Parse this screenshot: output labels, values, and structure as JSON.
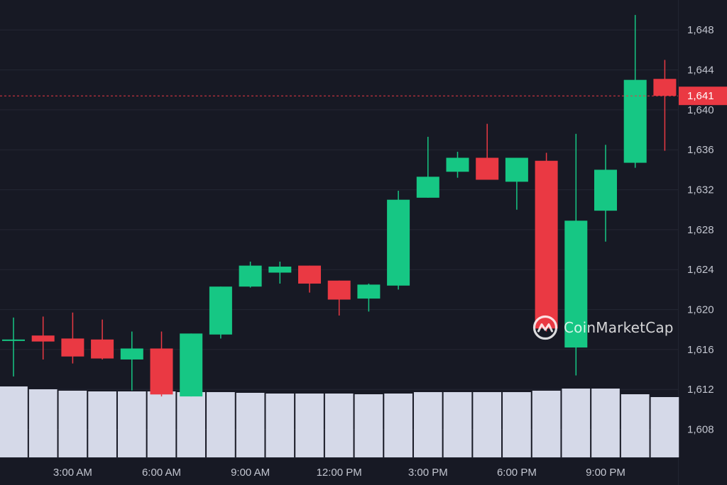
{
  "chart_data": {
    "type": "candlestick",
    "source_watermark": "CoinMarketCap",
    "x_tick_labels": [
      "3:00 AM",
      "6:00 AM",
      "9:00 AM",
      "12:00 PM",
      "3:00 PM",
      "6:00 PM",
      "9:00 PM"
    ],
    "y_tick_values": [
      1608,
      1612,
      1616,
      1620,
      1624,
      1628,
      1632,
      1636,
      1640,
      1644,
      1648
    ],
    "y_tick_labels": [
      "1,608",
      "1,612",
      "1,616",
      "1,620",
      "1,624",
      "1,628",
      "1,632",
      "1,636",
      "1,640",
      "1,644",
      "1,648"
    ],
    "ylim": [
      1605.2,
      1651
    ],
    "current_price": 1641.4,
    "current_price_label": "1,641",
    "grid": true,
    "colors": {
      "background": "#171924",
      "up": "#16c784",
      "down": "#ea3943",
      "volume": "#d5d9e8",
      "axis_text": "#c3c6d0",
      "grid": "#252733"
    },
    "candles": [
      {
        "open": 1617.0,
        "high": 1619.2,
        "low": 1613.3,
        "close": 1617.0,
        "volume": 1.0
      },
      {
        "open": 1617.4,
        "high": 1619.3,
        "low": 1615.0,
        "close": 1616.8,
        "volume": 0.96
      },
      {
        "open": 1617.1,
        "high": 1619.7,
        "low": 1614.6,
        "close": 1615.3,
        "volume": 0.94
      },
      {
        "open": 1617.0,
        "high": 1619.0,
        "low": 1615.0,
        "close": 1615.1,
        "volume": 0.93
      },
      {
        "open": 1615.0,
        "high": 1617.8,
        "low": 1611.9,
        "close": 1616.1,
        "volume": 0.93
      },
      {
        "open": 1616.1,
        "high": 1617.8,
        "low": 1611.3,
        "close": 1611.5,
        "volume": 0.93
      },
      {
        "open": 1611.3,
        "high": 1617.6,
        "low": 1611.3,
        "close": 1617.6,
        "volume": 0.92
      },
      {
        "open": 1617.5,
        "high": 1622.3,
        "low": 1617.1,
        "close": 1622.3,
        "volume": 0.92
      },
      {
        "open": 1622.3,
        "high": 1624.8,
        "low": 1622.2,
        "close": 1624.4,
        "volume": 0.91
      },
      {
        "open": 1623.7,
        "high": 1624.8,
        "low": 1622.6,
        "close": 1624.3,
        "volume": 0.9
      },
      {
        "open": 1624.4,
        "high": 1624.4,
        "low": 1621.7,
        "close": 1622.6,
        "volume": 0.9
      },
      {
        "open": 1622.9,
        "high": 1622.9,
        "low": 1619.4,
        "close": 1621.0,
        "volume": 0.9
      },
      {
        "open": 1621.1,
        "high": 1622.6,
        "low": 1619.8,
        "close": 1622.5,
        "volume": 0.89
      },
      {
        "open": 1622.4,
        "high": 1631.9,
        "low": 1622.0,
        "close": 1631.0,
        "volume": 0.9
      },
      {
        "open": 1631.2,
        "high": 1637.3,
        "low": 1631.2,
        "close": 1633.3,
        "volume": 0.92
      },
      {
        "open": 1633.8,
        "high": 1635.8,
        "low": 1633.2,
        "close": 1635.2,
        "volume": 0.92
      },
      {
        "open": 1635.2,
        "high": 1638.6,
        "low": 1633.0,
        "close": 1633.0,
        "volume": 0.92
      },
      {
        "open": 1632.8,
        "high": 1635.2,
        "low": 1630.0,
        "close": 1635.2,
        "volume": 0.92
      },
      {
        "open": 1634.9,
        "high": 1635.7,
        "low": 1617.8,
        "close": 1618.1,
        "volume": 0.94
      },
      {
        "open": 1616.2,
        "high": 1637.6,
        "low": 1613.4,
        "close": 1628.9,
        "volume": 0.97
      },
      {
        "open": 1629.9,
        "high": 1636.5,
        "low": 1626.8,
        "close": 1634.0,
        "volume": 0.97
      },
      {
        "open": 1634.7,
        "high": 1649.5,
        "low": 1634.2,
        "close": 1643.0,
        "volume": 0.89
      },
      {
        "open": 1643.1,
        "high": 1645.0,
        "low": 1635.9,
        "close": 1641.4,
        "volume": 0.85
      }
    ]
  }
}
